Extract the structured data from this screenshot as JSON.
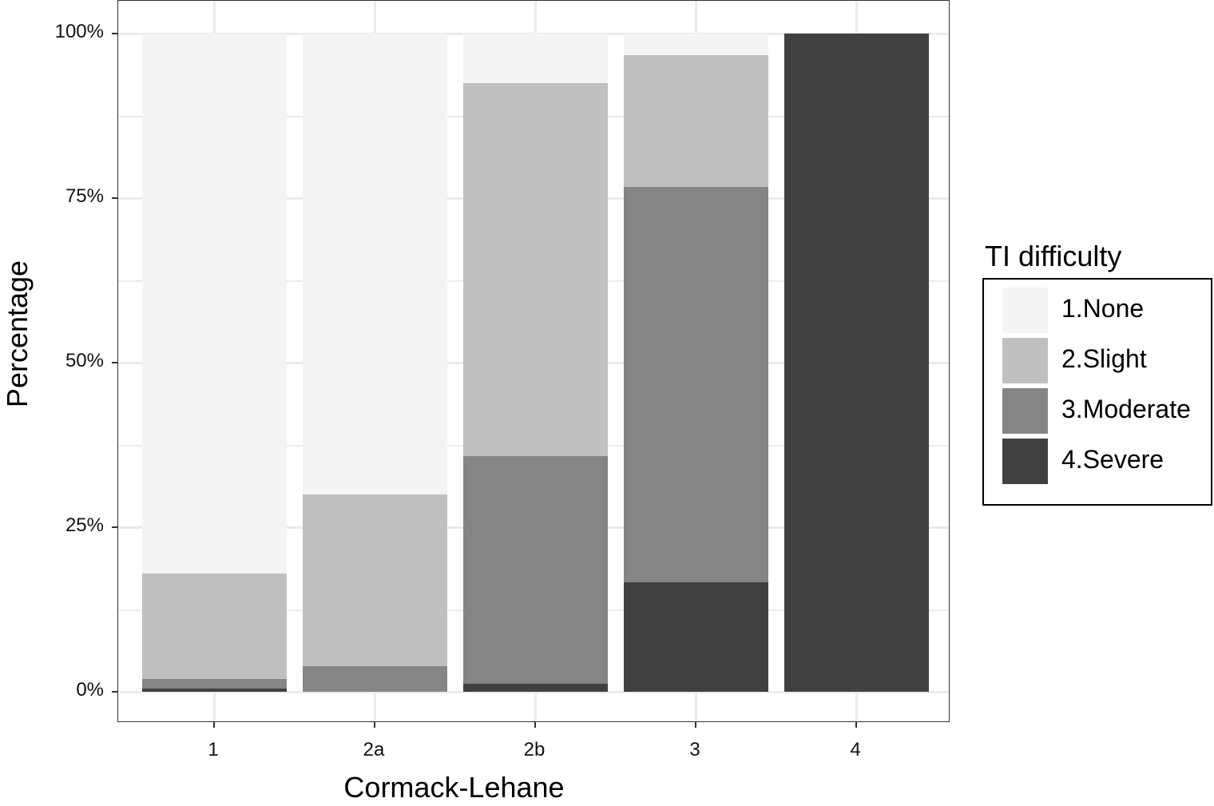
{
  "chart_data": {
    "type": "bar",
    "stacked": true,
    "title": "",
    "xlabel": "Cormack-Lehane",
    "ylabel": "Percentage",
    "ylim": [
      0,
      100
    ],
    "yticks": [
      "0%",
      "25%",
      "50%",
      "75%",
      "100%"
    ],
    "categories": [
      "1",
      "2a",
      "2b",
      "3",
      "4"
    ],
    "legend_title": "TI difficulty",
    "legend_position": "right",
    "grid": true,
    "series": [
      {
        "name": "1.None",
        "color": "#f4f4f4",
        "values": [
          82.0,
          70.0,
          7.5,
          3.3,
          0.0
        ]
      },
      {
        "name": "2.Slight",
        "color": "#c0c0c0",
        "values": [
          16.1,
          26.1,
          56.7,
          20.0,
          0.0
        ]
      },
      {
        "name": "3.Moderate",
        "color": "#858585",
        "values": [
          1.4,
          3.9,
          34.6,
          60.1,
          0.0
        ]
      },
      {
        "name": "4.Severe",
        "color": "#404040",
        "values": [
          0.5,
          0.0,
          1.2,
          16.6,
          100.0
        ]
      }
    ]
  }
}
